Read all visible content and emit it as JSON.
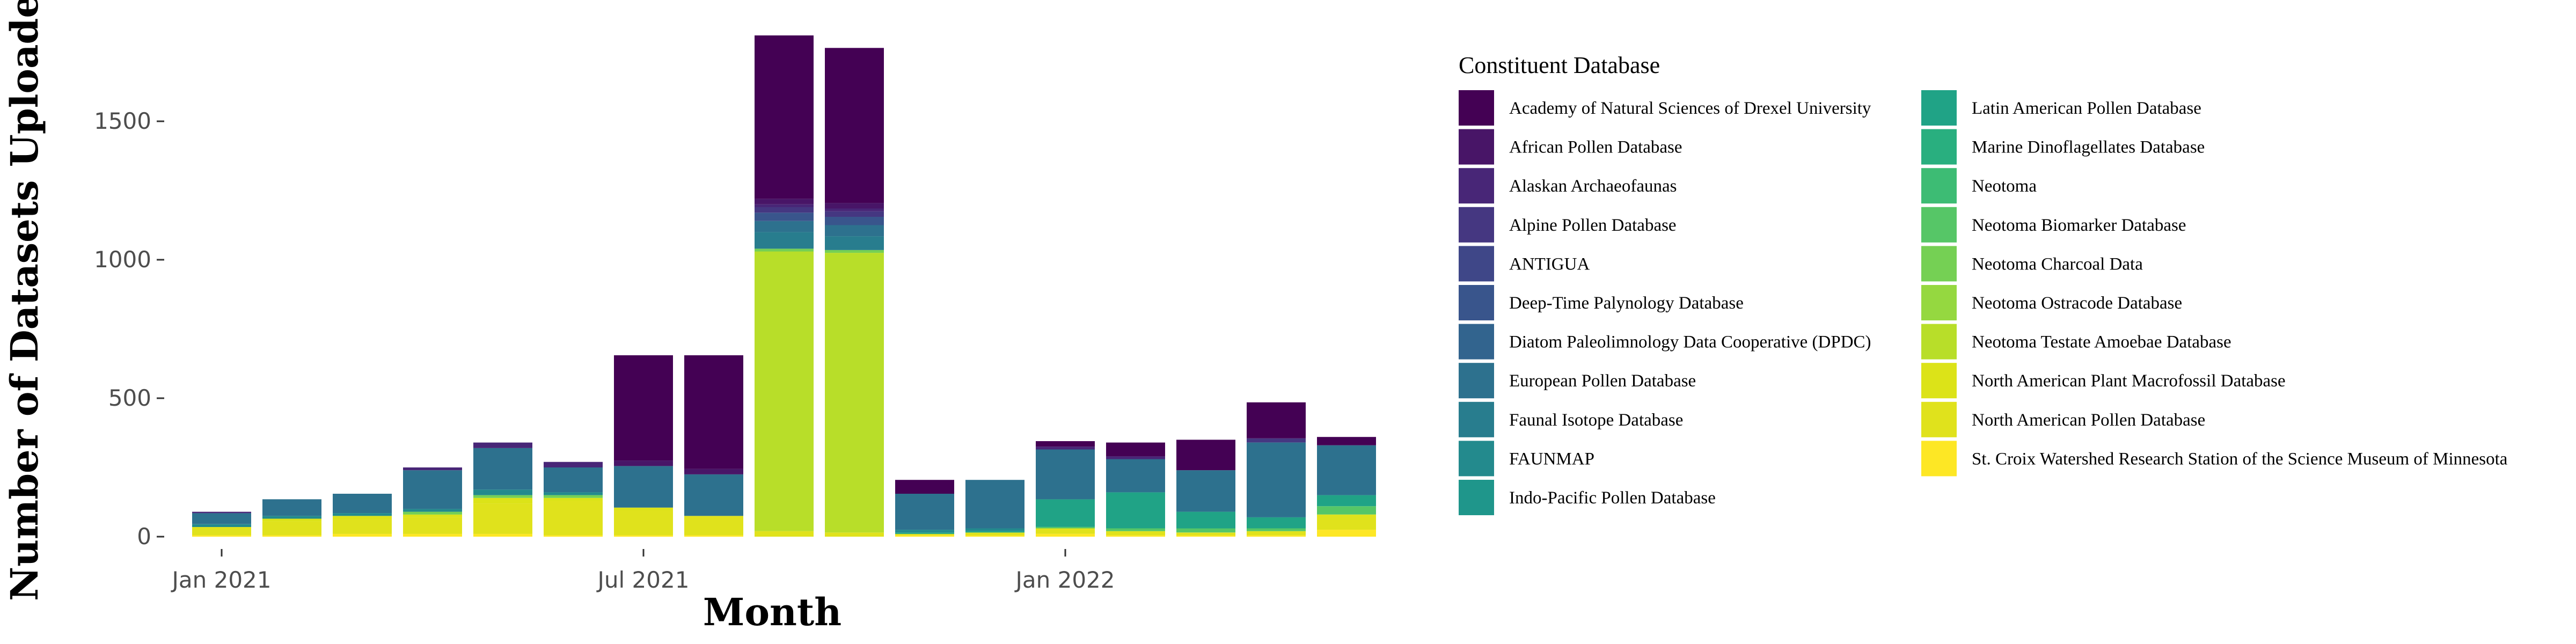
{
  "chart_data": {
    "type": "bar",
    "stacked": true,
    "xlabel": "Month",
    "ylabel": "Number of Datasets Uploaded",
    "ylim": [
      0,
      1900
    ],
    "y_ticks": [
      0,
      500,
      1000,
      1500
    ],
    "y_tick_labels": [
      "0",
      "500",
      "1000",
      "1500"
    ],
    "x_tick_labels": [
      "Jan 2021",
      "Jul 2021",
      "Jan 2022"
    ],
    "x_tick_months": [
      "2021-01",
      "2021-07",
      "2022-01"
    ],
    "categories": [
      "2021-01",
      "2021-02",
      "2021-03",
      "2021-04",
      "2021-05",
      "2021-06",
      "2021-07",
      "2021-08",
      "2021-09",
      "2021-10",
      "2021-11",
      "2021-12",
      "2022-01",
      "2022-02",
      "2022-03",
      "2022-04",
      "2022-05"
    ],
    "grid": false,
    "legend": {
      "title": "Constituent Database",
      "placement": "right",
      "columns": 2
    },
    "series": [
      {
        "name": "Academy of Natural Sciences of Drexel University",
        "color": "#440154",
        "values": [
          0,
          0,
          0,
          0,
          0,
          0,
          380,
          410,
          590,
          560,
          50,
          0,
          20,
          50,
          110,
          130,
          30
        ]
      },
      {
        "name": "African Pollen Database",
        "color": "#481567",
        "values": [
          0,
          0,
          0,
          0,
          0,
          0,
          20,
          20,
          20,
          20,
          0,
          0,
          0,
          0,
          0,
          0,
          0
        ]
      },
      {
        "name": "Alaskan Archaeofaunas",
        "color": "#482677",
        "values": [
          5,
          0,
          0,
          10,
          20,
          20,
          0,
          0,
          10,
          10,
          0,
          0,
          10,
          10,
          0,
          0,
          0
        ]
      },
      {
        "name": "Alpine Pollen Database",
        "color": "#453781",
        "values": [
          0,
          0,
          0,
          0,
          0,
          0,
          0,
          0,
          20,
          20,
          0,
          0,
          0,
          0,
          0,
          15,
          0
        ]
      },
      {
        "name": "ANTIGUA",
        "color": "#3f4788",
        "values": [
          0,
          0,
          0,
          0,
          0,
          0,
          0,
          0,
          0,
          0,
          0,
          0,
          0,
          0,
          0,
          0,
          0
        ]
      },
      {
        "name": "Deep-Time Palynology Database",
        "color": "#39558c",
        "values": [
          0,
          0,
          0,
          0,
          0,
          0,
          0,
          0,
          30,
          30,
          0,
          0,
          0,
          0,
          0,
          0,
          0
        ]
      },
      {
        "name": "Diatom Paleolimnology Data Cooperative (DPDC)",
        "color": "#32648e",
        "values": [
          0,
          0,
          0,
          0,
          0,
          0,
          0,
          0,
          0,
          0,
          0,
          0,
          0,
          0,
          0,
          0,
          0
        ]
      },
      {
        "name": "European Pollen Database",
        "color": "#2d718e",
        "values": [
          40,
          60,
          70,
          140,
          150,
          90,
          150,
          150,
          40,
          40,
          130,
          175,
          180,
          120,
          150,
          270,
          180
        ]
      },
      {
        "name": "Faunal Isotope Database",
        "color": "#287d8e",
        "values": [
          0,
          0,
          0,
          0,
          0,
          0,
          0,
          0,
          60,
          50,
          0,
          0,
          0,
          0,
          0,
          0,
          0
        ]
      },
      {
        "name": "FAUNMAP",
        "color": "#238a8d",
        "values": [
          10,
          10,
          10,
          10,
          20,
          10,
          0,
          0,
          0,
          0,
          10,
          10,
          0,
          0,
          0,
          0,
          0
        ]
      },
      {
        "name": "Indo-Pacific Pollen Database",
        "color": "#1f968b",
        "values": [
          0,
          0,
          0,
          0,
          0,
          0,
          0,
          0,
          0,
          0,
          0,
          0,
          0,
          0,
          0,
          0,
          0
        ]
      },
      {
        "name": "Latin American Pollen Database",
        "color": "#20a386",
        "values": [
          0,
          0,
          0,
          0,
          0,
          0,
          0,
          0,
          0,
          0,
          5,
          5,
          100,
          130,
          60,
          40,
          40
        ]
      },
      {
        "name": "Marine Dinoflagellates Database",
        "color": "#29af7f",
        "values": [
          0,
          0,
          0,
          0,
          0,
          0,
          0,
          0,
          0,
          0,
          0,
          0,
          0,
          0,
          0,
          0,
          0
        ]
      },
      {
        "name": "Neotoma",
        "color": "#3dbc74",
        "values": [
          0,
          0,
          0,
          0,
          0,
          0,
          0,
          0,
          0,
          0,
          0,
          0,
          0,
          0,
          0,
          0,
          0
        ]
      },
      {
        "name": "Neotoma Biomarker Database",
        "color": "#56c667",
        "values": [
          0,
          0,
          0,
          0,
          0,
          0,
          0,
          0,
          0,
          0,
          0,
          0,
          5,
          10,
          15,
          10,
          30
        ]
      },
      {
        "name": "Neotoma Charcoal Data",
        "color": "#75d054",
        "values": [
          0,
          0,
          0,
          10,
          10,
          10,
          0,
          0,
          10,
          10,
          0,
          0,
          0,
          0,
          0,
          0,
          0
        ]
      },
      {
        "name": "Neotoma Ostracode Database",
        "color": "#95d840",
        "values": [
          0,
          0,
          0,
          0,
          0,
          0,
          0,
          0,
          0,
          0,
          0,
          0,
          0,
          0,
          0,
          0,
          0
        ]
      },
      {
        "name": "Neotoma Testate Amoebae Database",
        "color": "#b8de29",
        "values": [
          0,
          0,
          0,
          0,
          0,
          0,
          0,
          0,
          1010,
          1010,
          0,
          0,
          0,
          0,
          0,
          0,
          0
        ]
      },
      {
        "name": "North American Plant Macrofossil Database",
        "color": "#dce318",
        "values": [
          0,
          10,
          10,
          10,
          20,
          10,
          10,
          0,
          0,
          0,
          0,
          0,
          0,
          0,
          0,
          0,
          0
        ]
      },
      {
        "name": "North American Pollen Database",
        "color": "#e0e21c",
        "values": [
          30,
          50,
          55,
          60,
          110,
          125,
          90,
          70,
          20,
          15,
          5,
          10,
          20,
          15,
          10,
          15,
          55
        ]
      },
      {
        "name": "St. Croix Watershed Research Station of the Science Museum of Minnesota",
        "color": "#fde725",
        "values": [
          5,
          5,
          10,
          10,
          10,
          5,
          5,
          5,
          0,
          0,
          5,
          5,
          10,
          5,
          5,
          5,
          25
        ]
      }
    ]
  }
}
